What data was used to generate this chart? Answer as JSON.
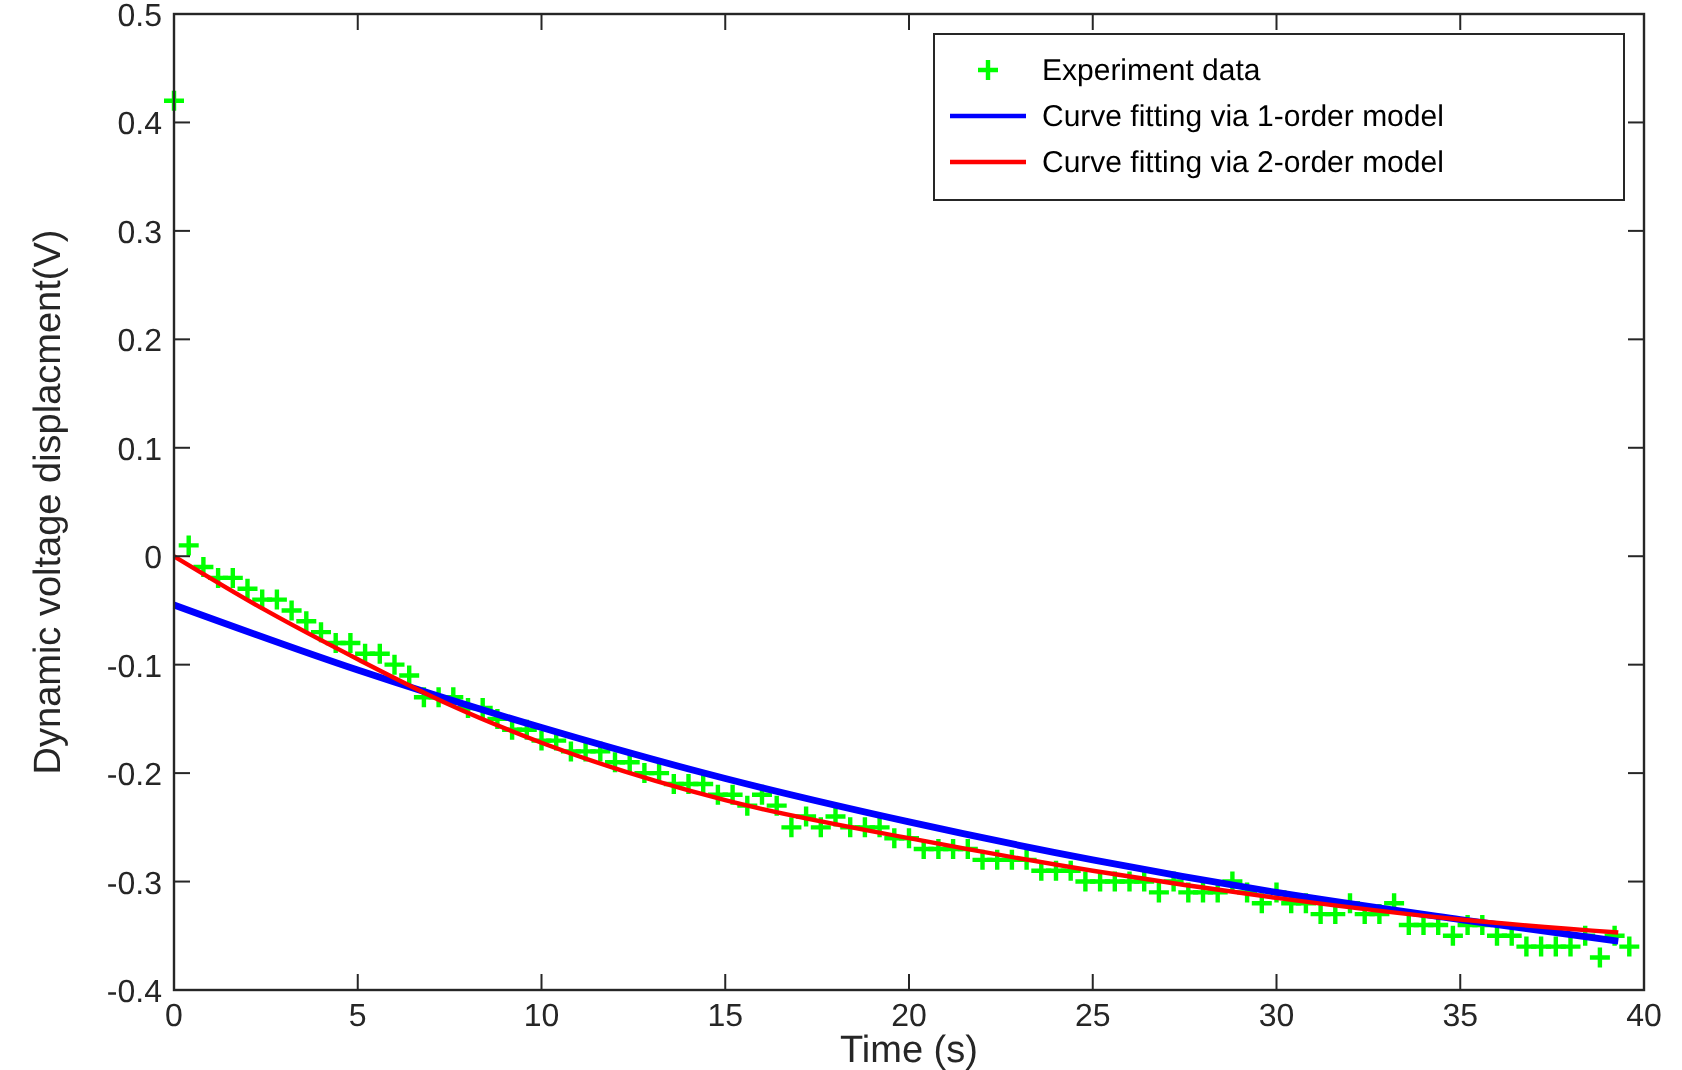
{
  "chart_data": {
    "type": "scatter",
    "xlabel": "Time (s)",
    "ylabel": "Dynamic voltage displacment(V)",
    "xlim": [
      0,
      40
    ],
    "ylim": [
      -0.4,
      0.5
    ],
    "xticks": [
      0,
      5,
      10,
      15,
      20,
      25,
      30,
      35,
      40
    ],
    "yticks": [
      -0.4,
      -0.3,
      -0.2,
      -0.1,
      0,
      0.1,
      0.2,
      0.3,
      0.4,
      0.5
    ],
    "grid": false,
    "legend": "top right",
    "series": [
      {
        "name": "Experiment data",
        "marker": "cross",
        "color": "#00ff00",
        "x": [
          0,
          0.4,
          0.8,
          1.2,
          1.6,
          2.0,
          2.4,
          2.8,
          3.2,
          3.6,
          4.0,
          4.4,
          4.8,
          5.2,
          5.6,
          6.0,
          6.4,
          6.8,
          7.2,
          7.6,
          8.0,
          8.4,
          8.8,
          9.2,
          9.6,
          10.0,
          10.4,
          10.8,
          11.2,
          11.6,
          12.0,
          12.4,
          12.8,
          13.2,
          13.6,
          14.0,
          14.4,
          14.8,
          15.2,
          15.6,
          16.0,
          16.4,
          16.8,
          17.2,
          17.6,
          18.0,
          18.4,
          18.8,
          19.2,
          19.6,
          20.0,
          20.4,
          20.8,
          21.2,
          21.6,
          22.0,
          22.4,
          22.8,
          23.2,
          23.6,
          24.0,
          24.4,
          24.8,
          25.2,
          25.6,
          26.0,
          26.4,
          26.8,
          27.2,
          27.6,
          28.0,
          28.4,
          28.8,
          29.2,
          29.6,
          30.0,
          30.4,
          30.8,
          31.2,
          31.6,
          32.0,
          32.4,
          32.8,
          33.2,
          33.6,
          34.0,
          34.4,
          34.8,
          35.2,
          35.6,
          36.0,
          36.4,
          36.8,
          37.2,
          37.6,
          38.0,
          38.4,
          38.8,
          39.2,
          39.6
        ],
        "values": [
          0.42,
          0.01,
          -0.01,
          -0.02,
          -0.02,
          -0.03,
          -0.04,
          -0.04,
          -0.05,
          -0.06,
          -0.07,
          -0.08,
          -0.08,
          -0.09,
          -0.09,
          -0.1,
          -0.11,
          -0.13,
          -0.13,
          -0.13,
          -0.14,
          -0.14,
          -0.15,
          -0.16,
          -0.16,
          -0.17,
          -0.17,
          -0.18,
          -0.18,
          -0.18,
          -0.19,
          -0.19,
          -0.2,
          -0.2,
          -0.21,
          -0.21,
          -0.21,
          -0.22,
          -0.22,
          -0.23,
          -0.22,
          -0.23,
          -0.25,
          -0.24,
          -0.25,
          -0.24,
          -0.25,
          -0.25,
          -0.25,
          -0.26,
          -0.26,
          -0.27,
          -0.27,
          -0.27,
          -0.27,
          -0.28,
          -0.28,
          -0.28,
          -0.28,
          -0.29,
          -0.29,
          -0.29,
          -0.3,
          -0.3,
          -0.3,
          -0.3,
          -0.3,
          -0.31,
          -0.3,
          -0.31,
          -0.31,
          -0.31,
          -0.3,
          -0.31,
          -0.32,
          -0.31,
          -0.32,
          -0.32,
          -0.33,
          -0.33,
          -0.32,
          -0.33,
          -0.33,
          -0.32,
          -0.34,
          -0.34,
          -0.34,
          -0.35,
          -0.34,
          -0.34,
          -0.35,
          -0.35,
          -0.36,
          -0.36,
          -0.36,
          -0.36,
          -0.35,
          -0.37,
          -0.35,
          -0.36
        ]
      },
      {
        "name": "Curve fitting via 1-order model",
        "type": "line",
        "marker": "none",
        "line_style": "solid",
        "color": "#0000ff",
        "x": [
          0,
          5,
          10,
          15,
          20,
          25,
          30,
          35,
          39.3
        ],
        "values": [
          -0.045,
          -0.105,
          -0.158,
          -0.205,
          -0.245,
          -0.28,
          -0.31,
          -0.335,
          -0.355
        ]
      },
      {
        "name": "Curve fitting via 2-order model",
        "type": "line",
        "marker": "none",
        "line_style": "solid",
        "color": "#ff0000",
        "x": [
          0,
          2.5,
          5,
          7.5,
          10,
          15,
          20,
          25,
          30,
          35,
          39.3
        ],
        "values": [
          0,
          -0.05,
          -0.095,
          -0.137,
          -0.172,
          -0.225,
          -0.26,
          -0.29,
          -0.315,
          -0.335,
          -0.347
        ]
      }
    ]
  }
}
